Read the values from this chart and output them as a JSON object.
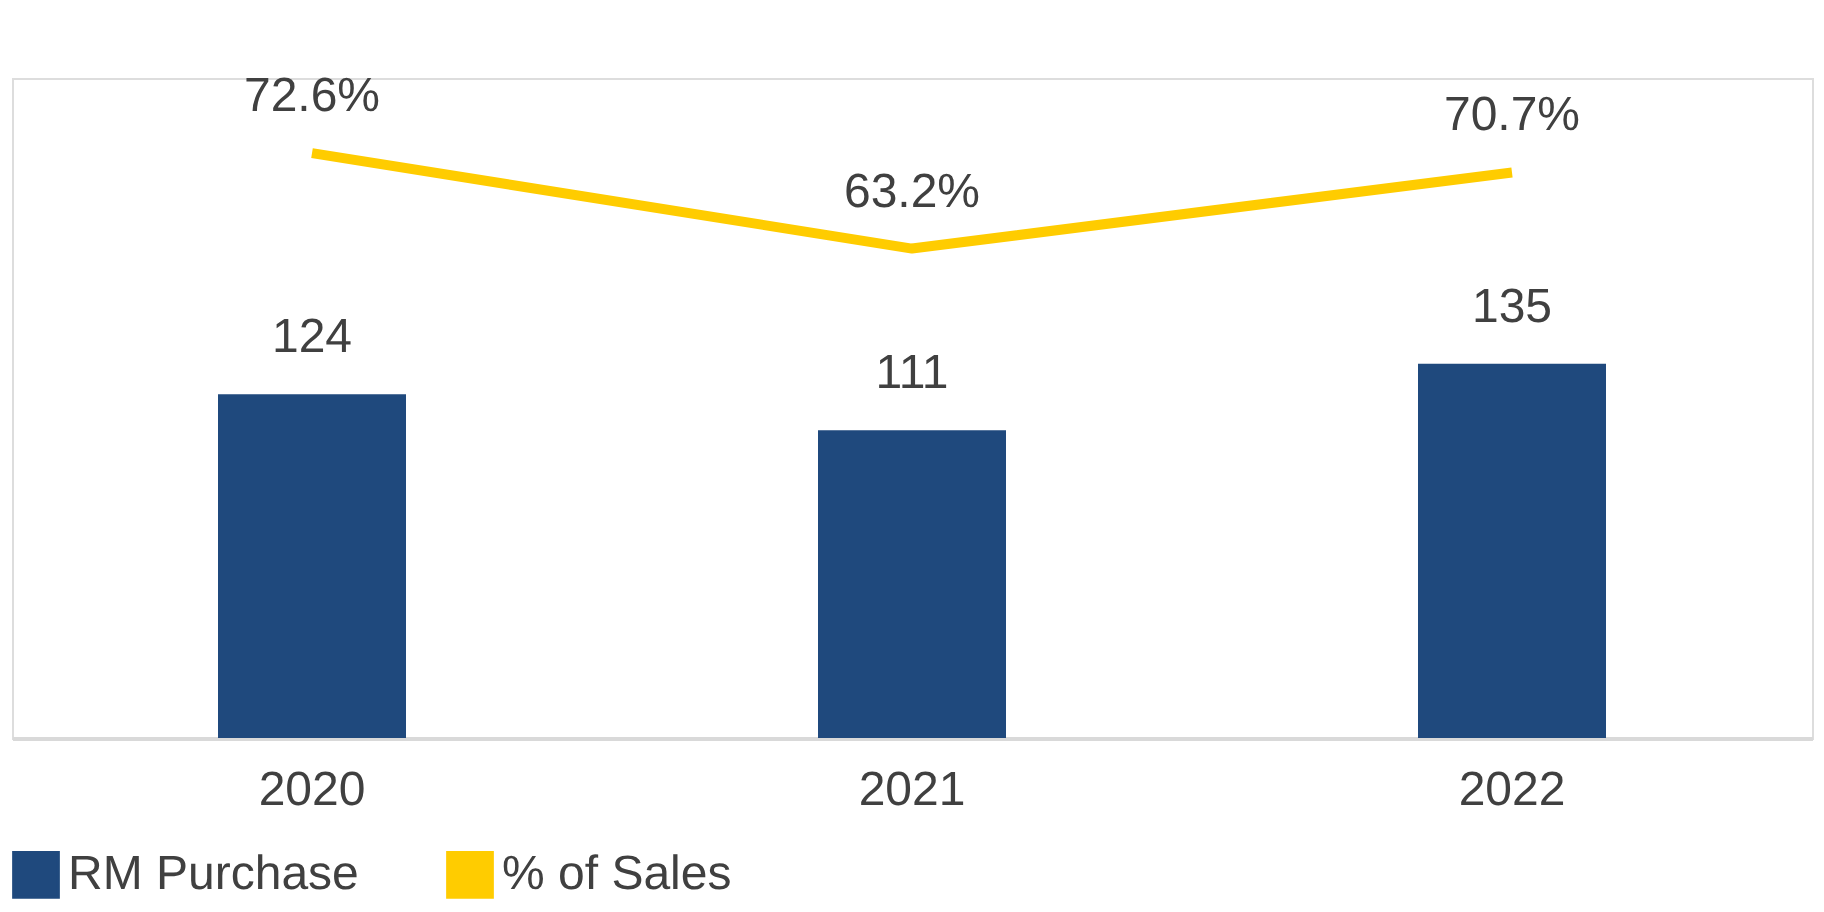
{
  "chart_data": {
    "type": "bar",
    "categories": [
      "2020",
      "2021",
      "2022"
    ],
    "series": [
      {
        "name": "RM Purchase",
        "color": "#1f497d",
        "values": [
          124,
          111,
          135
        ]
      },
      {
        "name": "% of Sales",
        "type": "line",
        "axis": "y2",
        "color": "#ffcc00",
        "values": [
          72.6,
          63.2,
          70.7
        ],
        "value_labels": [
          "72.6%",
          "63.2%",
          "70.7%"
        ]
      }
    ],
    "data_labels": true,
    "ylim": [
      0,
      238
    ],
    "y2lim": [
      15,
      80
    ],
    "legend": "bottom",
    "grid": false
  }
}
